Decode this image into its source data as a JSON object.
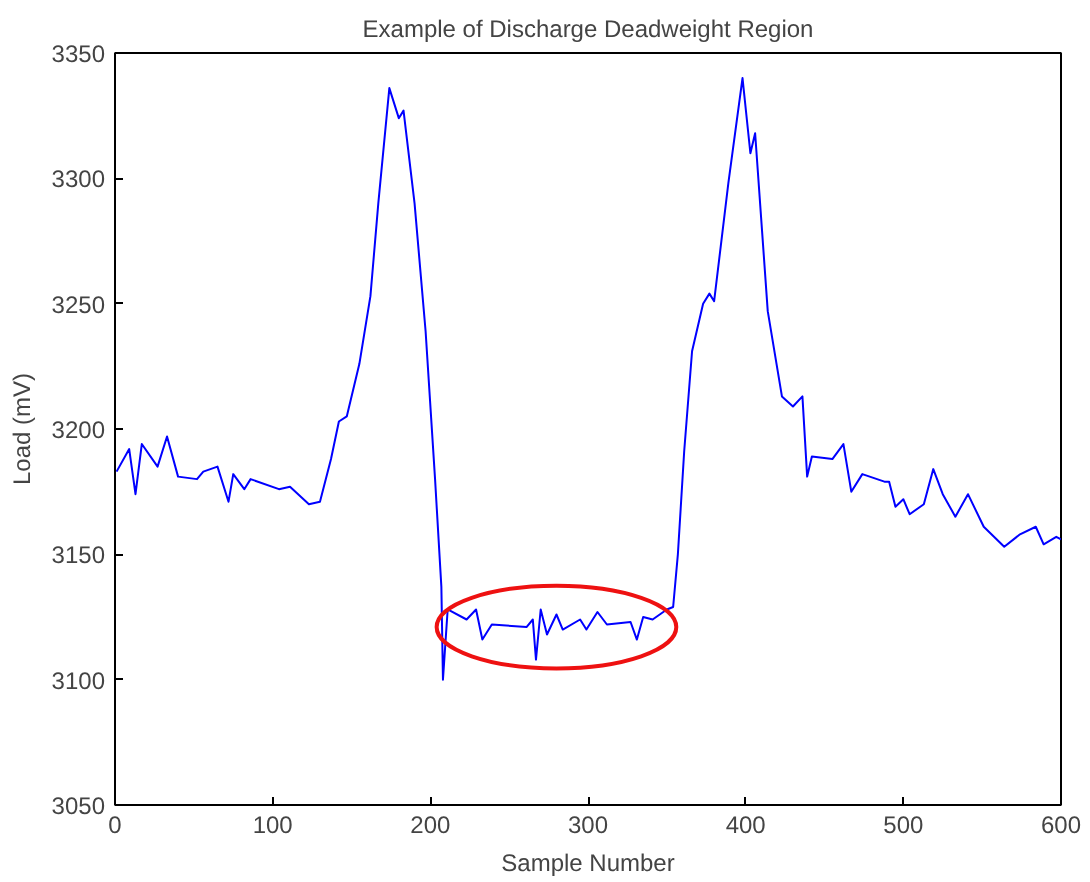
{
  "chart_data": {
    "type": "line",
    "title": "Example of Discharge Deadweight Region",
    "xlabel": "Sample Number",
    "ylabel": "Load (mV)",
    "xlim": [
      0,
      600
    ],
    "ylim": [
      3050,
      3350
    ],
    "xticks": [
      0,
      100,
      200,
      300,
      400,
      500,
      600
    ],
    "yticks": [
      3050,
      3100,
      3150,
      3200,
      3250,
      3300,
      3350
    ],
    "grid": false,
    "series": [
      {
        "color": "#0000ff",
        "x": [
          1,
          9,
          13,
          17,
          27,
          33,
          40,
          52,
          56,
          65,
          72,
          75,
          82,
          86,
          104,
          111,
          123,
          130,
          137,
          142,
          147,
          155,
          162,
          167,
          174,
          180,
          183,
          190,
          197,
          203,
          207,
          208,
          211,
          223,
          229,
          233,
          239,
          261,
          265,
          267,
          270,
          274,
          280,
          284,
          295,
          299,
          306,
          312,
          327,
          331,
          335,
          341,
          350,
          354,
          357,
          361,
          366,
          373,
          377,
          380,
          389,
          398,
          403,
          406,
          414,
          423,
          430,
          436,
          439,
          442,
          455,
          462,
          467,
          474,
          488,
          491,
          495,
          500,
          504,
          513,
          519,
          525,
          533,
          541,
          551,
          564,
          574,
          584,
          589,
          597,
          600
        ],
        "values": [
          3183,
          3192,
          3174,
          3194,
          3185,
          3197,
          3181,
          3180,
          3183,
          3185,
          3171,
          3182,
          3176,
          3180,
          3176,
          3177,
          3170,
          3171,
          3188,
          3203,
          3205,
          3226,
          3253,
          3290,
          3336,
          3324,
          3327,
          3290,
          3239,
          3180,
          3137,
          3100,
          3128,
          3124,
          3128,
          3116,
          3122,
          3121,
          3124,
          3108,
          3128,
          3118,
          3126,
          3120,
          3124,
          3120,
          3127,
          3122,
          3123,
          3116,
          3125,
          3124,
          3128,
          3129,
          3150,
          3191,
          3231,
          3250,
          3254,
          3251,
          3298,
          3340,
          3310,
          3318,
          3247,
          3213,
          3209,
          3213,
          3181,
          3189,
          3188,
          3194,
          3175,
          3182,
          3179,
          3179,
          3169,
          3172,
          3166,
          3170,
          3184,
          3174,
          3165,
          3174,
          3161,
          3153,
          3158,
          3161,
          3154,
          3157,
          3156
        ]
      }
    ]
  }
}
